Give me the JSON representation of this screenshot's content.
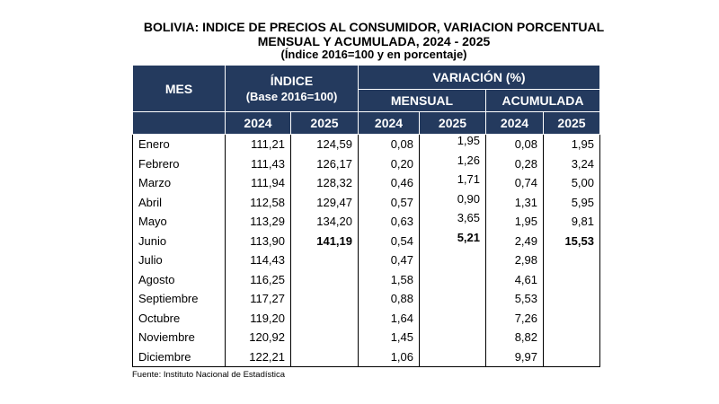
{
  "title": {
    "line1": "BOLIVIA: INDICE DE PRECIOS AL CONSUMIDOR, VARIACION PORCENTUAL",
    "line2": "MENSUAL Y ACUMULADA, 2024 - 2025",
    "line3": "(Índice 2016=100 y en porcentaje)"
  },
  "table": {
    "header": {
      "mes": "MES",
      "indice": "ÍNDICE",
      "indice_base": "(Base 2016=100)",
      "variacion": "VARIACIÓN (%)",
      "mensual": "MENSUAL",
      "acumulada": "ACUMULADA",
      "years": [
        "2024",
        "2025",
        "2024",
        "2025",
        "2024",
        "2025"
      ]
    },
    "rows": [
      {
        "mes": "Enero",
        "i2024": "111,21",
        "i2025": "124,59",
        "m2024": "0,08",
        "m2025": "1,95",
        "a2024": "0,08",
        "a2025": "1,95"
      },
      {
        "mes": "Febrero",
        "i2024": "111,43",
        "i2025": "126,17",
        "m2024": "0,20",
        "m2025": "1,26",
        "a2024": "0,28",
        "a2025": "3,24"
      },
      {
        "mes": "Marzo",
        "i2024": "111,94",
        "i2025": "128,32",
        "m2024": "0,46",
        "m2025": "1,71",
        "a2024": "0,74",
        "a2025": "5,00"
      },
      {
        "mes": "Abril",
        "i2024": "112,58",
        "i2025": "129,47",
        "m2024": "0,57",
        "m2025": "0,90",
        "a2024": "1,31",
        "a2025": "5,95"
      },
      {
        "mes": "Mayo",
        "i2024": "113,29",
        "i2025": "134,20",
        "m2024": "0,63",
        "m2025": "3,65",
        "a2024": "1,95",
        "a2025": "9,81"
      },
      {
        "mes": "Junio",
        "i2024": "113,90",
        "i2025": "141,19",
        "m2024": "0,54",
        "m2025": "5,21",
        "a2024": "2,49",
        "a2025": "15,53"
      },
      {
        "mes": "Julio",
        "i2024": "114,43",
        "i2025": "",
        "m2024": "0,47",
        "m2025": "",
        "a2024": "2,98",
        "a2025": ""
      },
      {
        "mes": "Agosto",
        "i2024": "116,25",
        "i2025": "",
        "m2024": "1,58",
        "m2025": "",
        "a2024": "4,61",
        "a2025": ""
      },
      {
        "mes": "Septiembre",
        "i2024": "117,27",
        "i2025": "",
        "m2024": "0,88",
        "m2025": "",
        "a2024": "5,53",
        "a2025": ""
      },
      {
        "mes": "Octubre",
        "i2024": "119,20",
        "i2025": "",
        "m2024": "1,64",
        "m2025": "",
        "a2024": "7,26",
        "a2025": ""
      },
      {
        "mes": "Noviembre",
        "i2024": "120,92",
        "i2025": "",
        "m2024": "1,45",
        "m2025": "",
        "a2024": "8,82",
        "a2025": ""
      },
      {
        "mes": "Diciembre",
        "i2024": "122,21",
        "i2025": "",
        "m2024": "1,06",
        "m2025": "",
        "a2024": "9,97",
        "a2025": ""
      }
    ],
    "bold_row": "Junio"
  },
  "source": "Fuente: Instituto Nacional de Estadística",
  "colors": {
    "header_bg": "#243a5e",
    "header_text": "#ffffff"
  }
}
